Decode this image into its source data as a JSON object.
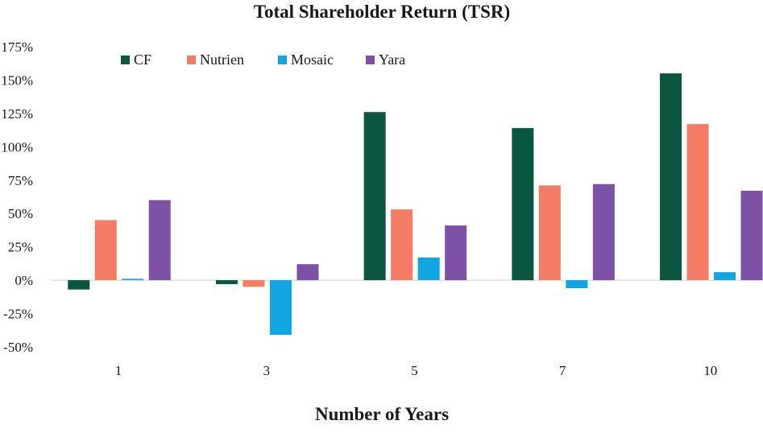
{
  "chart_data": {
    "type": "bar",
    "title": "Total Shareholder Return (TSR)",
    "xlabel": "Number of Years",
    "ylabel": "",
    "categories": [
      "1",
      "3",
      "5",
      "7",
      "10"
    ],
    "ylim": [
      -50,
      175
    ],
    "yticks": [
      -50,
      -25,
      0,
      25,
      50,
      75,
      100,
      125,
      150,
      175
    ],
    "ytick_labels": [
      "-50%",
      "-25%",
      "0%",
      "25%",
      "50%",
      "75%",
      "100%",
      "125%",
      "150%",
      "175%"
    ],
    "legend_position": "top-left",
    "grid": false,
    "series": [
      {
        "name": "CF",
        "color": "#0b5640",
        "values": [
          -7,
          -3,
          126,
          114,
          155
        ]
      },
      {
        "name": "Nutrien",
        "color": "#f47c64",
        "values": [
          45,
          -5,
          53,
          71,
          117
        ]
      },
      {
        "name": "Mosaic",
        "color": "#11a6e2",
        "values": [
          1,
          -41,
          17,
          -6,
          6
        ]
      },
      {
        "name": "Yara",
        "color": "#7c51a6",
        "values": [
          60,
          12,
          41,
          72,
          67
        ]
      }
    ]
  }
}
